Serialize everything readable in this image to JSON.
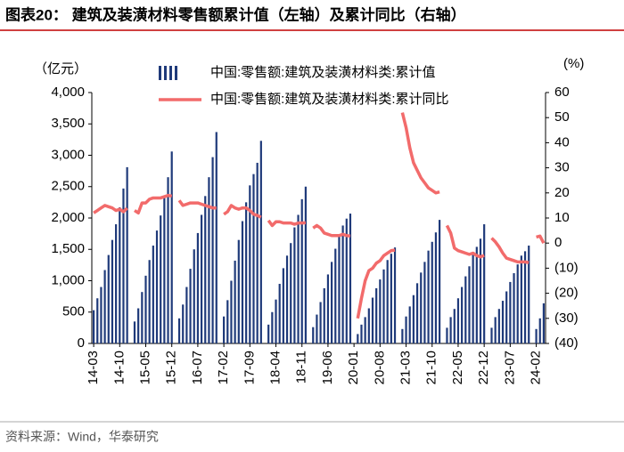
{
  "chart_data": {
    "type": "bar_line",
    "title": "图表20：  建筑及装潢材料零售额累计值（左轴）及累计同比（右轴）",
    "source": "资料来源：Wind，华泰研究",
    "y_label": "（亿元）",
    "y2_label": "(%)",
    "categories": [
      "14-03",
      null,
      null,
      null,
      null,
      null,
      null,
      "14-10",
      null,
      null,
      null,
      null,
      null,
      null,
      "15-05",
      null,
      null,
      null,
      null,
      null,
      null,
      "15-12",
      null,
      null,
      null,
      null,
      null,
      null,
      "16-07",
      null,
      null,
      null,
      null,
      null,
      null,
      "17-02",
      null,
      null,
      null,
      null,
      null,
      null,
      "17-09",
      null,
      null,
      null,
      null,
      null,
      null,
      "18-04",
      null,
      null,
      null,
      null,
      null,
      null,
      "18-11",
      null,
      null,
      null,
      null,
      null,
      null,
      "19-06",
      null,
      null,
      null,
      null,
      null,
      null,
      "20-01",
      null,
      null,
      null,
      null,
      null,
      null,
      "20-08",
      null,
      null,
      null,
      null,
      null,
      null,
      "21-03",
      null,
      null,
      null,
      null,
      null,
      null,
      "21-10",
      null,
      null,
      null,
      null,
      null,
      null,
      "22-05",
      null,
      null,
      null,
      null,
      null,
      null,
      "22-12",
      null,
      null,
      null,
      null,
      null,
      null,
      "23-07",
      null,
      null,
      null,
      null,
      null,
      null,
      "24-02",
      null,
      null
    ],
    "series": [
      {
        "name": "中国:零售额:建筑及装潢材料类:累计值",
        "color": "#1f3a7a",
        "kind": "bar",
        "values": [
          530,
          720,
          900,
          1170,
          1410,
          1650,
          1900,
          2170,
          2470,
          2810,
          null,
          350,
          560,
          820,
          1080,
          1330,
          1560,
          1800,
          2040,
          2330,
          2650,
          3060,
          null,
          400,
          620,
          900,
          1190,
          1500,
          1760,
          2050,
          2350,
          2650,
          2970,
          3370,
          null,
          430,
          690,
          1000,
          1320,
          1650,
          1950,
          2250,
          2520,
          2700,
          2880,
          3230,
          null,
          300,
          500,
          700,
          950,
          1200,
          1400,
          1600,
          1850,
          2050,
          2300,
          2500,
          null,
          260,
          460,
          660,
          880,
          1100,
          1300,
          1510,
          1720,
          1880,
          1990,
          2070,
          null,
          150,
          300,
          420,
          560,
          730,
          880,
          1020,
          1180,
          1330,
          1430,
          1530,
          null,
          230,
          430,
          590,
          770,
          960,
          1130,
          1300,
          1480,
          1620,
          1770,
          1970,
          null,
          250,
          420,
          550,
          720,
          900,
          1070,
          1230,
          1410,
          1540,
          1670,
          1900,
          null,
          250,
          420,
          550,
          680,
          830,
          980,
          1120,
          1260,
          1400,
          1470,
          1560,
          null,
          230,
          400,
          640
        ]
      },
      {
        "name": "中国:零售额:建筑及装潢材料类:累计同比",
        "color": "#f26b6b",
        "kind": "line",
        "axis": "y2",
        "values": [
          12,
          13,
          14,
          15,
          14.5,
          14,
          13,
          13.5,
          12.5,
          13.9,
          null,
          13,
          12,
          16,
          16,
          17.5,
          18,
          18,
          18,
          18.5,
          19,
          18.7,
          null,
          17,
          15,
          15.5,
          16,
          16,
          16,
          15.5,
          15,
          14.5,
          14,
          14,
          null,
          11.5,
          12.5,
          15,
          14,
          13.5,
          14,
          14,
          13,
          11.5,
          11,
          10.3,
          null,
          9,
          7,
          8.5,
          8.5,
          8,
          8,
          8,
          7.5,
          8,
          8,
          8.1,
          null,
          6,
          7,
          6,
          4,
          3.5,
          3,
          3,
          3,
          3.5,
          3,
          2.8,
          null,
          -30,
          -22,
          -15,
          -11,
          -10,
          -8,
          -7,
          -5,
          -4,
          -3,
          -2.8,
          null,
          52,
          46,
          38,
          32,
          29,
          26,
          24,
          22,
          21,
          20,
          20.4,
          null,
          7,
          4,
          -2,
          -3,
          -3.5,
          -4,
          -4.5,
          -4,
          -5,
          -5.5,
          -4.9,
          null,
          2,
          0.5,
          -1.5,
          -4,
          -6,
          -6.5,
          -7,
          -7.5,
          -7.5,
          -7.5,
          -7.8,
          null,
          2.4,
          2.8,
          0
        ]
      }
    ],
    "ylim": [
      0,
      4000
    ],
    "yticks": [
      0,
      500,
      {
        "value": 1000,
        "label": "1,000"
      },
      {
        "value": 1500,
        "label": "1,500"
      },
      {
        "value": 2000,
        "label": "2,000"
      },
      {
        "value": 2500,
        "label": "2,500"
      },
      {
        "value": 3000,
        "label": "3,000"
      },
      {
        "value": 3500,
        "label": "3,500"
      },
      {
        "value": 4000,
        "label": "4,000"
      }
    ],
    "y2lim": [
      -40,
      60
    ],
    "y2ticks": [
      {
        "value": -40,
        "label": "(40)"
      },
      {
        "value": -30,
        "label": "(30)"
      },
      {
        "value": -20,
        "label": "(20)"
      },
      {
        "value": -10,
        "label": "(10)"
      },
      0,
      10,
      20,
      30,
      40,
      50,
      60
    ]
  }
}
